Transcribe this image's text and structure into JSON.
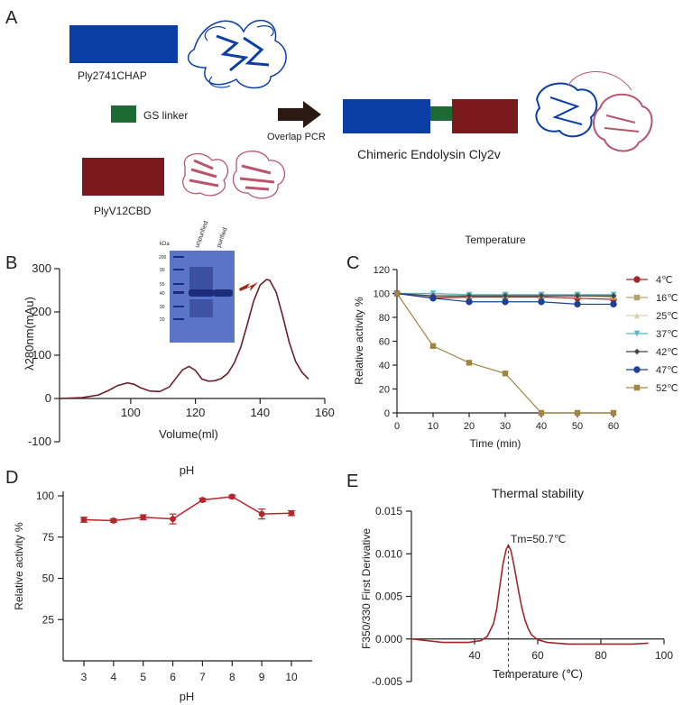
{
  "panels": {
    "a": "A",
    "b": "B",
    "c": "C",
    "d": "D",
    "e": "E"
  },
  "panel_a": {
    "chap_label": "Ply2741CHAP",
    "linker_label": "GS linker",
    "cbd_label": "PlyV12CBD",
    "arrow_label": "Overlap PCR",
    "chimera_label": "Chimeric Endolysin Cly2v",
    "colors": {
      "chap": "#0b3fa6",
      "linker": "#1e6a35",
      "cbd": "#7a1a1c",
      "cbd_structure": "#b8566e",
      "arrow": "#2a1a12"
    }
  },
  "gel": {
    "ladder_label": "kDa",
    "lane_labels": [
      "unpurified",
      "purified"
    ],
    "marker_values": [
      "200",
      "90",
      "55",
      "40",
      "30",
      "20"
    ],
    "colors": {
      "background": "#5a74c8",
      "band": "#1c2c78",
      "arrow": "#9c2a17"
    }
  },
  "chart_data": [
    {
      "id": "B",
      "type": "line",
      "title": "",
      "xlabel": "Volume(ml)",
      "ylabel": "λ280nm(mAu)",
      "xlim": [
        78,
        160
      ],
      "ylim": [
        -100,
        300
      ],
      "xticks": [
        100,
        120,
        140,
        160
      ],
      "yticks": [
        -100,
        0,
        100,
        200,
        300
      ],
      "series": [
        {
          "color": "#6a1f2a",
          "x": [
            78,
            85,
            90,
            93,
            96,
            99,
            101,
            103,
            106,
            109,
            112,
            114,
            116,
            118,
            120,
            122,
            124,
            126,
            128,
            130,
            132,
            134,
            136,
            138,
            140,
            142,
            143,
            145,
            147,
            149,
            151,
            153,
            155
          ],
          "y": [
            0,
            2,
            8,
            18,
            30,
            36,
            33,
            25,
            17,
            16,
            27,
            47,
            66,
            74,
            65,
            45,
            40,
            41,
            46,
            58,
            82,
            118,
            170,
            225,
            262,
            275,
            273,
            245,
            190,
            130,
            85,
            60,
            45
          ]
        }
      ]
    },
    {
      "id": "C",
      "type": "line",
      "title": "Temperature",
      "xlabel": "Time (min)",
      "ylabel": "Relative activity %",
      "xlim": [
        0,
        60
      ],
      "ylim": [
        0,
        120
      ],
      "xticks": [
        0,
        10,
        20,
        30,
        40,
        50,
        60
      ],
      "yticks": [
        0,
        20,
        40,
        60,
        80,
        100,
        120
      ],
      "legend_position": "right",
      "x": [
        0,
        10,
        20,
        30,
        40,
        50,
        60
      ],
      "series": [
        {
          "name": "4℃",
          "color": "#a3262a",
          "marker": "circle",
          "values": [
            100,
            96,
            97,
            97,
            97,
            96,
            95
          ]
        },
        {
          "name": "16℃",
          "color": "#b5a36f",
          "marker": "square",
          "values": [
            100,
            97,
            98,
            98,
            98,
            98,
            97
          ]
        },
        {
          "name": "25℃",
          "color": "#d8d2b0",
          "marker": "triangle",
          "values": [
            100,
            100,
            99,
            99,
            99,
            99,
            99
          ]
        },
        {
          "name": "37℃",
          "color": "#52b8cc",
          "marker": "triangle-down",
          "values": [
            100,
            100,
            99,
            99,
            99,
            99,
            99
          ]
        },
        {
          "name": "42℃",
          "color": "#444444",
          "marker": "diamond",
          "values": [
            100,
            98,
            98,
            98,
            98,
            98,
            98
          ]
        },
        {
          "name": "47℃",
          "color": "#1f3f9a",
          "marker": "circle",
          "values": [
            100,
            96,
            93,
            93,
            93,
            91,
            91
          ]
        },
        {
          "name": "52℃",
          "color": "#a08440",
          "marker": "square",
          "values": [
            100,
            56,
            42,
            33,
            0,
            0,
            0
          ]
        }
      ]
    },
    {
      "id": "D",
      "type": "line",
      "title": "pH",
      "xlabel": "pH",
      "ylabel": "Relative activity %",
      "xlim": [
        2.3,
        10.7
      ],
      "ylim": [
        0,
        100
      ],
      "xticks": [
        3,
        4,
        5,
        6,
        7,
        8,
        9,
        10
      ],
      "yticks": [
        25,
        50,
        75,
        100
      ],
      "x": [
        3,
        4,
        5,
        6,
        7,
        8,
        9,
        10
      ],
      "series": [
        {
          "color": "#b5262a",
          "values": [
            85.5,
            85,
            87,
            86,
            97.5,
            99.5,
            89,
            89.5
          ],
          "errors": [
            1.5,
            1,
            1.5,
            3,
            1,
            1,
            3,
            1.5
          ]
        }
      ]
    },
    {
      "id": "E",
      "type": "line",
      "title": "Thermal stability",
      "xlabel": "Temperature (℃)",
      "ylabel": "F350/330 First Derivative",
      "xlim": [
        20,
        100
      ],
      "ylim": [
        -0.005,
        0.015
      ],
      "xticks": [
        40,
        60,
        80,
        100
      ],
      "yticks": [
        -0.005,
        0.0,
        0.005,
        0.01,
        0.015
      ],
      "annotation": "Tm=50.7℃",
      "tm": 50.7,
      "series": [
        {
          "color": "#a3262a",
          "x": [
            20,
            30,
            38,
            42,
            44,
            46,
            47,
            48,
            49,
            50,
            50.7,
            51.5,
            52.5,
            54,
            55,
            56,
            57,
            58,
            60,
            63,
            66,
            70,
            75,
            80,
            85,
            90,
            95
          ],
          "y": [
            0,
            -0.0004,
            -0.0004,
            -0.0002,
            0.0003,
            0.0018,
            0.0035,
            0.0062,
            0.0088,
            0.0105,
            0.011,
            0.0104,
            0.0086,
            0.0055,
            0.0036,
            0.0022,
            0.0012,
            0.0005,
            -0.0001,
            -0.0004,
            -0.0005,
            -0.0006,
            -0.0006,
            -0.0006,
            -0.0006,
            -0.0006,
            -0.0005
          ]
        }
      ]
    }
  ]
}
